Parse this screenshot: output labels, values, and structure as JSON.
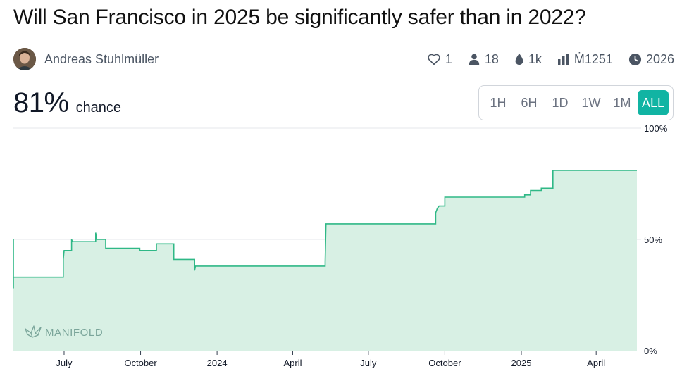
{
  "question": {
    "title": "Will San Francisco in 2025 be significantly safer than in 2022?"
  },
  "author": {
    "name": "Andreas Stuhlmüller"
  },
  "stats": {
    "likes": "1",
    "traders": "18",
    "liquidity": "1k",
    "volume": "Ṁ1251",
    "close_year": "2026"
  },
  "probability": {
    "value": "81%",
    "label": "chance"
  },
  "time_range": {
    "options": [
      "1H",
      "6H",
      "1D",
      "1W",
      "1M",
      "ALL"
    ],
    "selected": "ALL"
  },
  "watermark": {
    "text": "MANIFOLD"
  },
  "colors": {
    "line": "#2fb886",
    "fill": "#d8f0e4",
    "accent": "#11b4a3",
    "grid": "#e5e7eb"
  },
  "chart_data": {
    "type": "line",
    "x_start": "2023-05-01",
    "x_end": "2025-05-20",
    "ylim": [
      0,
      100
    ],
    "y_ticks": [
      {
        "value": 100,
        "label": "100%"
      },
      {
        "value": 50,
        "label": "50%"
      },
      {
        "value": 0,
        "label": "0%"
      }
    ],
    "x_ticks": [
      {
        "date": "2023-07-01",
        "label": "July"
      },
      {
        "date": "2023-10-01",
        "label": "October"
      },
      {
        "date": "2024-01-01",
        "label": "2024"
      },
      {
        "date": "2024-04-01",
        "label": "April"
      },
      {
        "date": "2024-07-01",
        "label": "July"
      },
      {
        "date": "2024-10-01",
        "label": "October"
      },
      {
        "date": "2025-01-01",
        "label": "2025"
      },
      {
        "date": "2025-04-01",
        "label": "April"
      }
    ],
    "series": [
      {
        "points": [
          [
            "2023-05-01",
            50
          ],
          [
            "2023-05-01",
            28
          ],
          [
            "2023-05-01",
            33
          ],
          [
            "2023-06-30",
            33
          ],
          [
            "2023-06-30",
            41
          ],
          [
            "2023-07-01",
            45
          ],
          [
            "2023-07-10",
            45
          ],
          [
            "2023-07-10",
            50
          ],
          [
            "2023-07-11",
            49
          ],
          [
            "2023-08-08",
            49
          ],
          [
            "2023-08-08",
            53
          ],
          [
            "2023-08-09",
            50
          ],
          [
            "2023-08-20",
            50
          ],
          [
            "2023-08-20",
            46
          ],
          [
            "2023-09-30",
            46
          ],
          [
            "2023-09-30",
            45
          ],
          [
            "2023-10-20",
            45
          ],
          [
            "2023-10-20",
            48
          ],
          [
            "2023-11-10",
            48
          ],
          [
            "2023-11-10",
            41
          ],
          [
            "2023-12-05",
            41
          ],
          [
            "2023-12-05",
            36
          ],
          [
            "2023-12-06",
            38
          ],
          [
            "2024-05-10",
            38
          ],
          [
            "2024-05-10",
            40
          ],
          [
            "2024-05-11",
            57
          ],
          [
            "2024-09-20",
            57
          ],
          [
            "2024-09-20",
            62
          ],
          [
            "2024-09-22",
            64
          ],
          [
            "2024-09-24",
            65
          ],
          [
            "2024-10-01",
            65
          ],
          [
            "2024-10-01",
            69
          ],
          [
            "2025-01-05",
            69
          ],
          [
            "2025-01-05",
            70
          ],
          [
            "2025-01-12",
            70
          ],
          [
            "2025-01-12",
            72
          ],
          [
            "2025-01-25",
            72
          ],
          [
            "2025-01-25",
            73
          ],
          [
            "2025-02-08",
            73
          ],
          [
            "2025-02-08",
            81
          ],
          [
            "2025-05-20",
            81
          ]
        ]
      }
    ]
  }
}
